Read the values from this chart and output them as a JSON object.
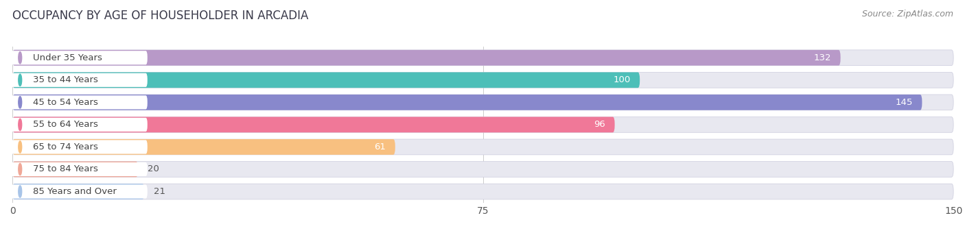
{
  "title": "OCCUPANCY BY AGE OF HOUSEHOLDER IN ARCADIA",
  "source": "Source: ZipAtlas.com",
  "categories": [
    "Under 35 Years",
    "35 to 44 Years",
    "45 to 54 Years",
    "55 to 64 Years",
    "65 to 74 Years",
    "75 to 84 Years",
    "85 Years and Over"
  ],
  "values": [
    132,
    100,
    145,
    96,
    61,
    20,
    21
  ],
  "bar_colors": [
    "#b899c8",
    "#4dbfb8",
    "#8888cc",
    "#f07898",
    "#f8c080",
    "#f0a898",
    "#a8c4e8"
  ],
  "xlim": [
    0,
    150
  ],
  "xticks": [
    0,
    75,
    150
  ],
  "bar_height": 0.7,
  "background_color": "#ffffff",
  "bar_bg_color": "#e8e8f0",
  "label_pill_color": "#ffffff",
  "label_color_inside": "#ffffff",
  "label_color_outside": "#555555",
  "title_fontsize": 12,
  "source_fontsize": 9,
  "tick_fontsize": 10,
  "category_fontsize": 9.5,
  "value_fontsize": 9.5
}
